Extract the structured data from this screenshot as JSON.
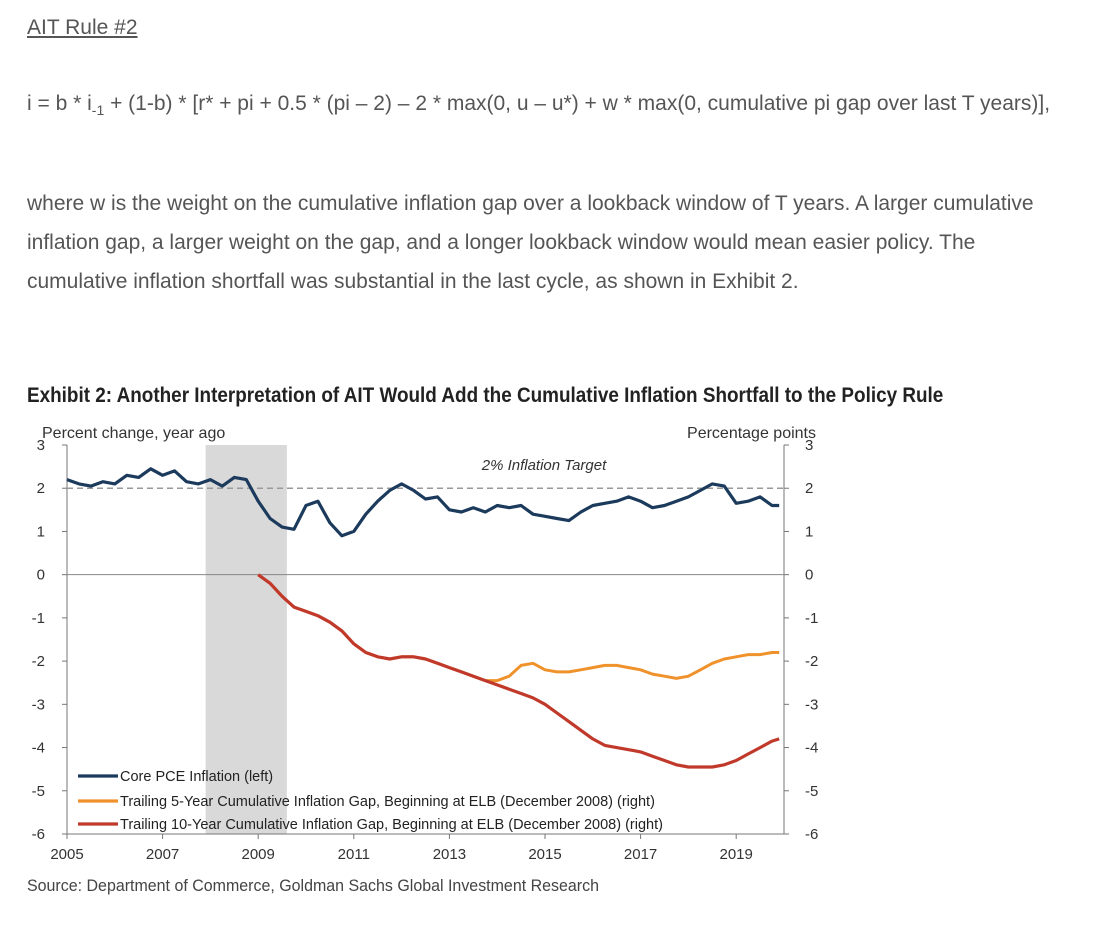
{
  "heading": "AIT Rule #2",
  "formula": {
    "part1": "i = b * i",
    "subscript": "-1",
    "part2": " + (1-b) * [r* + pi + 0.5 * (pi – 2) – 2 * max(0, u – u*) + w * max(0, cumulative pi gap over last T years)],"
  },
  "paragraph": "where w is the weight on the cumulative inflation gap over a lookback window of T years. A larger cumulative inflation gap, a larger weight on the gap, and a longer lookback window would mean easier policy. The cumulative inflation shortfall was substantial in the last cycle, as shown in Exhibit 2.",
  "exhibit_title": "Exhibit 2: Another Interpretation of AIT Would Add the Cumulative Inflation Shortfall to the Policy Rule",
  "source": "Source: Department of Commerce, Goldman Sachs Global Investment Research",
  "colors": {
    "core_pce": "#1b3a5c",
    "gap_5y": "#f0922b",
    "gap_10y": "#c0392b",
    "recession": "#d9d9d9",
    "target_line": "#9a9a9a"
  },
  "chart_data": {
    "type": "line",
    "ylabel_left": "Percent change, year ago",
    "ylabel_right": "Percentage points",
    "xlim": [
      2005,
      2020
    ],
    "ylim": [
      -6,
      3
    ],
    "x_ticks": [
      "2005",
      "2007",
      "2009",
      "2011",
      "2013",
      "2015",
      "2017",
      "2019"
    ],
    "y_ticks_left": [
      "3",
      "2",
      "1",
      "0",
      "-1",
      "-2",
      "-3",
      "-4",
      "-5",
      "-6"
    ],
    "y_ticks_right": [
      "3",
      "2",
      "1",
      "0",
      "-1",
      "-2",
      "-3",
      "-4",
      "-5",
      "-6"
    ],
    "target_line": {
      "value": 2,
      "label": "2% Inflation Target"
    },
    "recession_shading": {
      "start": 2007.9,
      "end": 2009.6
    },
    "legend_position": "bottom-left",
    "series": [
      {
        "name": "Core PCE Inflation (left)",
        "axis": "left",
        "x": [
          2005.0,
          2005.25,
          2005.5,
          2005.75,
          2006.0,
          2006.25,
          2006.5,
          2006.75,
          2007.0,
          2007.25,
          2007.5,
          2007.75,
          2008.0,
          2008.25,
          2008.5,
          2008.75,
          2009.0,
          2009.25,
          2009.5,
          2009.75,
          2010.0,
          2010.25,
          2010.5,
          2010.75,
          2011.0,
          2011.25,
          2011.5,
          2011.75,
          2012.0,
          2012.25,
          2012.5,
          2012.75,
          2013.0,
          2013.25,
          2013.5,
          2013.75,
          2014.0,
          2014.25,
          2014.5,
          2014.75,
          2015.0,
          2015.25,
          2015.5,
          2015.75,
          2016.0,
          2016.25,
          2016.5,
          2016.75,
          2017.0,
          2017.25,
          2017.5,
          2017.75,
          2018.0,
          2018.25,
          2018.5,
          2018.75,
          2019.0,
          2019.25,
          2019.5,
          2019.75,
          2019.9
        ],
        "values": [
          2.2,
          2.1,
          2.05,
          2.15,
          2.1,
          2.3,
          2.25,
          2.45,
          2.3,
          2.4,
          2.15,
          2.1,
          2.2,
          2.05,
          2.25,
          2.2,
          1.7,
          1.3,
          1.1,
          1.05,
          1.6,
          1.7,
          1.2,
          0.9,
          1.0,
          1.4,
          1.7,
          1.95,
          2.1,
          1.95,
          1.75,
          1.8,
          1.5,
          1.45,
          1.55,
          1.45,
          1.6,
          1.55,
          1.6,
          1.4,
          1.35,
          1.3,
          1.25,
          1.45,
          1.6,
          1.65,
          1.7,
          1.8,
          1.7,
          1.55,
          1.6,
          1.7,
          1.8,
          1.95,
          2.1,
          2.05,
          1.65,
          1.7,
          1.8,
          1.6,
          1.6
        ]
      },
      {
        "name": "Trailing 5-Year Cumulative Inflation Gap, Beginning at ELB (December 2008) (right)",
        "axis": "right",
        "x": [
          2009.0,
          2009.25,
          2009.5,
          2009.75,
          2010.0,
          2010.25,
          2010.5,
          2010.75,
          2011.0,
          2011.25,
          2011.5,
          2011.75,
          2012.0,
          2012.25,
          2012.5,
          2012.75,
          2013.0,
          2013.25,
          2013.5,
          2013.75,
          2014.0,
          2014.25,
          2014.5,
          2014.75,
          2015.0,
          2015.25,
          2015.5,
          2015.75,
          2016.0,
          2016.25,
          2016.5,
          2016.75,
          2017.0,
          2017.25,
          2017.5,
          2017.75,
          2018.0,
          2018.25,
          2018.5,
          2018.75,
          2019.0,
          2019.25,
          2019.5,
          2019.75,
          2019.9
        ],
        "values": [
          0.0,
          -0.2,
          -0.5,
          -0.75,
          -0.85,
          -0.95,
          -1.1,
          -1.3,
          -1.6,
          -1.8,
          -1.9,
          -1.95,
          -1.9,
          -1.9,
          -1.95,
          -2.05,
          -2.15,
          -2.25,
          -2.35,
          -2.45,
          -2.45,
          -2.35,
          -2.1,
          -2.05,
          -2.2,
          -2.25,
          -2.25,
          -2.2,
          -2.15,
          -2.1,
          -2.1,
          -2.15,
          -2.2,
          -2.3,
          -2.35,
          -2.4,
          -2.35,
          -2.2,
          -2.05,
          -1.95,
          -1.9,
          -1.85,
          -1.85,
          -1.8,
          -1.8
        ]
      },
      {
        "name": "Trailing 10-Year Cumulative Inflation Gap, Beginning at ELB (December 2008) (right)",
        "axis": "right",
        "x": [
          2009.0,
          2009.25,
          2009.5,
          2009.75,
          2010.0,
          2010.25,
          2010.5,
          2010.75,
          2011.0,
          2011.25,
          2011.5,
          2011.75,
          2012.0,
          2012.25,
          2012.5,
          2012.75,
          2013.0,
          2013.25,
          2013.5,
          2013.75,
          2014.0,
          2014.25,
          2014.5,
          2014.75,
          2015.0,
          2015.25,
          2015.5,
          2015.75,
          2016.0,
          2016.25,
          2016.5,
          2016.75,
          2017.0,
          2017.25,
          2017.5,
          2017.75,
          2018.0,
          2018.25,
          2018.5,
          2018.75,
          2019.0,
          2019.25,
          2019.5,
          2019.75,
          2019.9
        ],
        "values": [
          0.0,
          -0.2,
          -0.5,
          -0.75,
          -0.85,
          -0.95,
          -1.1,
          -1.3,
          -1.6,
          -1.8,
          -1.9,
          -1.95,
          -1.9,
          -1.9,
          -1.95,
          -2.05,
          -2.15,
          -2.25,
          -2.35,
          -2.45,
          -2.55,
          -2.65,
          -2.75,
          -2.85,
          -3.0,
          -3.2,
          -3.4,
          -3.6,
          -3.8,
          -3.95,
          -4.0,
          -4.05,
          -4.1,
          -4.2,
          -4.3,
          -4.4,
          -4.45,
          -4.45,
          -4.45,
          -4.4,
          -4.3,
          -4.15,
          -4.0,
          -3.85,
          -3.8
        ]
      }
    ]
  }
}
